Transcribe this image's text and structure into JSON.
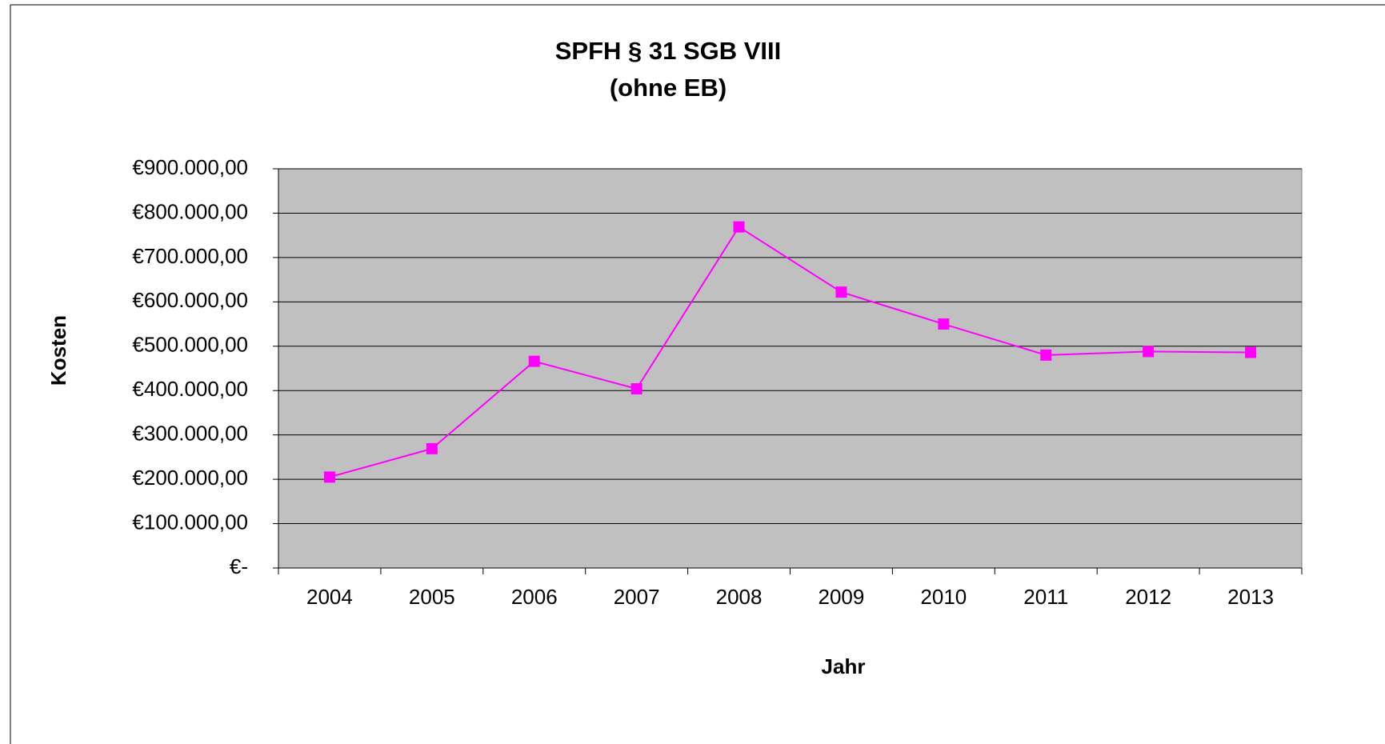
{
  "chart_data": {
    "type": "line",
    "title": "SPFH § 31 SGB VIII",
    "subtitle": "(ohne EB)",
    "x_label": "Jahr",
    "y_label": "Kosten",
    "categories": [
      "2004",
      "2005",
      "2006",
      "2007",
      "2008",
      "2009",
      "2010",
      "2011",
      "2012",
      "2013"
    ],
    "series": [
      {
        "name": "Kosten",
        "color": "#ff00ff",
        "values": [
          205000,
          269000,
          466000,
          404000,
          769000,
          622000,
          550000,
          480000,
          488000,
          486000
        ]
      }
    ],
    "ylim": [
      0,
      900000
    ],
    "yticks": [
      {
        "value": 0,
        "label": "€-"
      },
      {
        "value": 100000,
        "label": "€100.000,00"
      },
      {
        "value": 200000,
        "label": "€200.000,00"
      },
      {
        "value": 300000,
        "label": "€300.000,00"
      },
      {
        "value": 400000,
        "label": "€400.000,00"
      },
      {
        "value": 500000,
        "label": "€500.000,00"
      },
      {
        "value": 600000,
        "label": "€600.000,00"
      },
      {
        "value": 700000,
        "label": "€700.000,00"
      },
      {
        "value": 800000,
        "label": "€800.000,00"
      },
      {
        "value": 900000,
        "label": "€900.000,00"
      }
    ],
    "grid": true,
    "plot_background": "#c0c0c0"
  }
}
